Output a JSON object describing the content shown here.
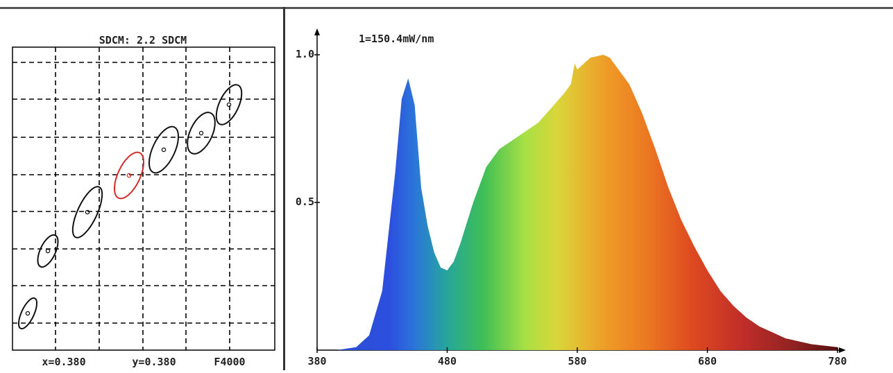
{
  "sdcm": {
    "title": "SDCM:  2.2 SDCM",
    "x_label": "x=0.380",
    "y_label": "y=0.380",
    "cct_label": "F4000",
    "ellipse_color": "#111111",
    "active_color": "#d42a2a"
  },
  "spectrum": {
    "scale_label": "1=150.4mW/nm",
    "y_ticks": [
      "1.0",
      "0.5"
    ],
    "x_ticks": [
      "380",
      "480",
      "580",
      "680",
      "780"
    ]
  },
  "chart_data": [
    {
      "type": "scatter",
      "title": "SDCM:  2.2 SDCM",
      "points": [
        {
          "label": "ellipse-1",
          "active": false
        },
        {
          "label": "ellipse-2",
          "active": false
        },
        {
          "label": "ellipse-3",
          "active": false
        },
        {
          "label": "ellipse-4",
          "active": true
        },
        {
          "label": "ellipse-5",
          "active": false
        },
        {
          "label": "ellipse-6",
          "active": false
        },
        {
          "label": "ellipse-7",
          "active": false
        }
      ],
      "grid": true
    },
    {
      "type": "area",
      "title": "1=150.4mW/nm",
      "xlim": [
        380,
        780
      ],
      "ylim": [
        0,
        1.0
      ],
      "x": [
        380,
        395,
        410,
        420,
        430,
        440,
        445,
        450,
        455,
        460,
        465,
        470,
        475,
        480,
        485,
        490,
        500,
        510,
        520,
        530,
        540,
        550,
        560,
        570,
        575,
        578,
        580,
        585,
        590,
        600,
        605,
        610,
        620,
        630,
        640,
        650,
        660,
        670,
        680,
        690,
        700,
        710,
        720,
        730,
        740,
        750,
        760,
        770,
        780
      ],
      "y": [
        0.0,
        0.0,
        0.01,
        0.05,
        0.2,
        0.6,
        0.85,
        0.92,
        0.83,
        0.55,
        0.42,
        0.33,
        0.28,
        0.27,
        0.3,
        0.36,
        0.5,
        0.62,
        0.68,
        0.71,
        0.74,
        0.77,
        0.82,
        0.87,
        0.9,
        0.97,
        0.95,
        0.97,
        0.99,
        1.0,
        0.99,
        0.96,
        0.9,
        0.8,
        0.68,
        0.55,
        0.44,
        0.35,
        0.27,
        0.2,
        0.15,
        0.11,
        0.08,
        0.06,
        0.04,
        0.03,
        0.02,
        0.015,
        0.01
      ],
      "x_ticks": [
        380,
        480,
        580,
        680,
        780
      ],
      "y_ticks": [
        0.5,
        1.0
      ],
      "grid": false
    }
  ]
}
